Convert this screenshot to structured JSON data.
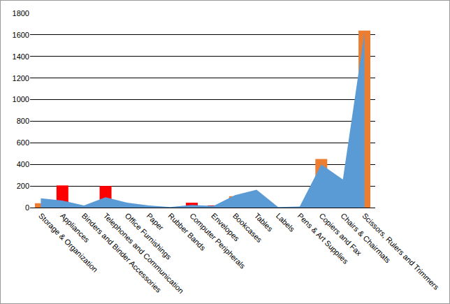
{
  "chart_data": {
    "type": "bar",
    "categories": [
      "Storage & Organization",
      "Appliances",
      "Binders and Binder Accessories",
      "Telephones and Communication",
      "Office Furnishings",
      "Paper",
      "Rubber Bands",
      "Computer Peripherals",
      "Envelopes",
      "Bookcases",
      "Tables",
      "Labels",
      "Pens & Art Supplies",
      "Copiers and Fax",
      "Chairs & Chairmats",
      "Scissors, Rulers and Trimmers"
    ],
    "series": [
      {
        "type": "area",
        "color": "#5b9bd5",
        "values": [
          85,
          65,
          20,
          95,
          45,
          20,
          5,
          25,
          15,
          115,
          165,
          5,
          10,
          400,
          260,
          1620
        ]
      },
      {
        "type": "bar",
        "colors": [
          "#ed7d31",
          "#ff0000",
          "#ed7d31",
          "#ff0000",
          "#ed7d31",
          "#ed7d31",
          "#ed7d31",
          "#ff0000",
          "#ff0000",
          "#ed7d31",
          "#ed7d31",
          "#ed7d31",
          "#ed7d31",
          "#ed7d31",
          "#ed7d31",
          "#ed7d31"
        ],
        "values": [
          40,
          205,
          0,
          200,
          0,
          0,
          0,
          45,
          20,
          105,
          75,
          0,
          0,
          450,
          95,
          1640
        ]
      }
    ],
    "ylim": [
      0,
      1800
    ],
    "yticks": [
      0,
      200,
      400,
      600,
      800,
      1000,
      1200,
      1400,
      1600,
      1800
    ],
    "grid": true
  }
}
